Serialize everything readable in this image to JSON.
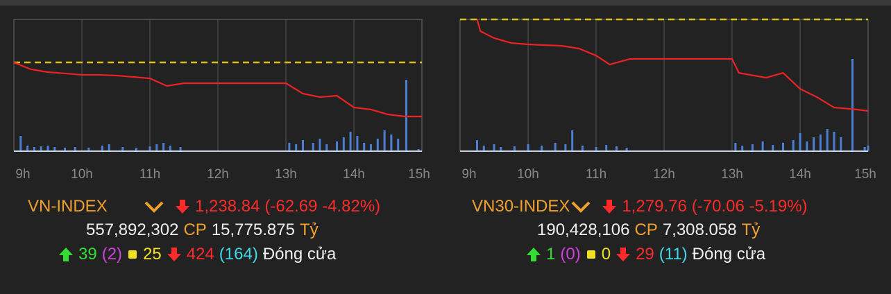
{
  "panels": [
    {
      "chart": {
        "type": "line",
        "xlim": [
          9,
          15
        ],
        "ylim": [
          1198.6,
          1351.4
        ],
        "reference": 1301.53,
        "xticks": [
          {
            "value": 9,
            "label": "9h"
          },
          {
            "value": 10,
            "label": "10h"
          },
          {
            "value": 11,
            "label": "11h"
          },
          {
            "value": 12,
            "label": "12h"
          },
          {
            "value": 13,
            "label": "13h"
          },
          {
            "value": 14,
            "label": "14h"
          },
          {
            "value": 15,
            "label": "15h"
          }
        ],
        "x": [
          9.0,
          9.25,
          9.5,
          9.75,
          10.0,
          10.25,
          10.5,
          10.75,
          11.0,
          11.25,
          11.5,
          13.0,
          13.25,
          13.5,
          13.75,
          14.0,
          14.25,
          14.5,
          14.75,
          15.0
        ],
        "values": [
          1301.5,
          1293.5,
          1290.3,
          1288.7,
          1287.1,
          1287.1,
          1286.3,
          1284.7,
          1283.0,
          1274.2,
          1277.4,
          1277.4,
          1265.4,
          1261.3,
          1262.9,
          1249.3,
          1246.9,
          1241.2,
          1238.8,
          1238.8
        ],
        "color": "#ee2222",
        "reference_color": "#d8c020",
        "volume": {
          "color": "#4a7fd4",
          "ylim": [
            0,
            190
          ],
          "x": [
            9.1,
            9.2,
            9.3,
            9.4,
            9.5,
            9.6,
            9.75,
            9.9,
            10.1,
            10.3,
            10.4,
            10.6,
            10.8,
            11.0,
            11.1,
            11.2,
            11.3,
            11.45,
            13.05,
            13.15,
            13.25,
            13.4,
            13.5,
            13.6,
            13.75,
            13.85,
            13.95,
            14.05,
            14.15,
            14.25,
            14.35,
            14.45,
            14.55,
            14.65,
            14.77,
            14.95
          ],
          "values": [
            22,
            8,
            6,
            7,
            8,
            6,
            5,
            6,
            5,
            8,
            10,
            6,
            5,
            7,
            10,
            12,
            8,
            6,
            12,
            10,
            16,
            12,
            18,
            10,
            14,
            20,
            28,
            22,
            12,
            10,
            18,
            30,
            24,
            18,
            103,
            3
          ]
        }
      },
      "name": "VN-INDEX",
      "price": "1,238.84",
      "change": "(-62.69 -4.82%)",
      "volume": "557,892,302",
      "volume_unit": "CP",
      "value": "15,775.875",
      "value_unit": "Tỷ",
      "advances": "39",
      "ceiling": "(2)",
      "unchanged": "25",
      "declines": "424",
      "floor": "(164)",
      "status": "Đóng cửa"
    },
    {
      "chart": {
        "type": "line",
        "xlim": [
          9,
          15
        ],
        "ylim": [
          1249.0,
          1349.82
        ],
        "reference": 1349.82,
        "xticks": [
          {
            "value": 9,
            "label": "9h"
          },
          {
            "value": 10,
            "label": "10h"
          },
          {
            "value": 11,
            "label": "11h"
          },
          {
            "value": 12,
            "label": "12h"
          },
          {
            "value": 13,
            "label": "13h"
          },
          {
            "value": 14,
            "label": "14h"
          },
          {
            "value": 15,
            "label": "15h"
          }
        ],
        "x": [
          9.25,
          9.3,
          9.5,
          9.75,
          10.0,
          10.5,
          10.75,
          11.0,
          11.2,
          11.5,
          13.0,
          13.1,
          13.5,
          13.75,
          14.0,
          14.25,
          14.5,
          14.75,
          15.0
        ],
        "values": [
          1349.8,
          1340.8,
          1335.5,
          1331.8,
          1330.7,
          1329.6,
          1327.5,
          1322.2,
          1315.3,
          1319.6,
          1319.6,
          1308.9,
          1305.2,
          1308.9,
          1296.7,
          1290.3,
          1282.4,
          1281.3,
          1279.8
        ],
        "color": "#ee2222",
        "reference_color": "#d8c020",
        "volume": {
          "color": "#4a7fd4",
          "ylim": [
            0,
            190
          ],
          "x": [
            9.25,
            9.35,
            9.5,
            9.6,
            9.8,
            10.0,
            10.2,
            10.4,
            10.55,
            10.65,
            10.8,
            11.0,
            11.15,
            11.3,
            11.45,
            13.05,
            13.15,
            13.3,
            13.45,
            13.6,
            13.75,
            13.9,
            14.0,
            14.1,
            14.2,
            14.3,
            14.4,
            14.5,
            14.6,
            14.77,
            14.95,
            15.0
          ],
          "values": [
            16,
            8,
            10,
            6,
            7,
            10,
            8,
            12,
            10,
            30,
            8,
            6,
            9,
            7,
            5,
            12,
            8,
            10,
            14,
            9,
            12,
            16,
            26,
            14,
            20,
            24,
            32,
            28,
            20,
            133,
            6,
            8
          ]
        }
      },
      "name": "VN30-INDEX",
      "price": "1,279.76",
      "change": "(-70.06 -5.19%)",
      "volume": "190,428,106",
      "volume_unit": "CP",
      "value": "7,308.058",
      "value_unit": "Tỷ",
      "advances": "1",
      "ceiling": "(0)",
      "unchanged": "0",
      "declines": "29",
      "floor": "(11)",
      "status": "Đóng cửa"
    }
  ]
}
